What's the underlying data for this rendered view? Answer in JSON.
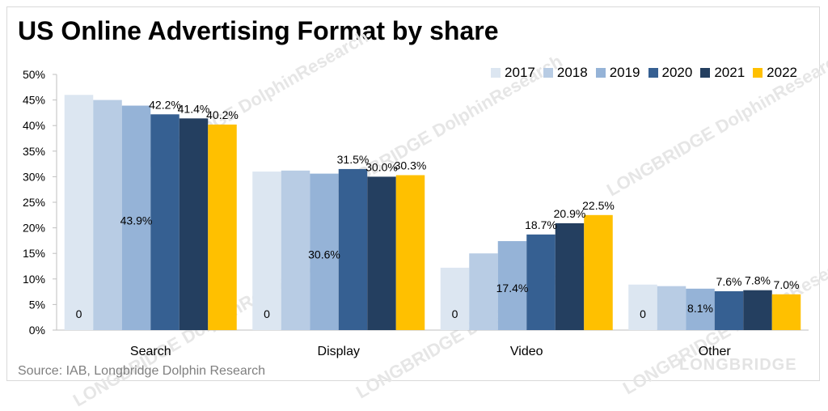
{
  "chart_data": {
    "type": "bar",
    "title": "US Online Advertising Format by share",
    "source": "Source: IAB, Longbridge Dolphin Research",
    "watermark_text": "LONGBRIDGE DolphinResearch",
    "watermark_brand": "LONGBRIDGE",
    "categories": [
      "Search",
      "Display",
      "Video",
      "Other"
    ],
    "ylim": [
      0,
      50
    ],
    "yticks": [
      "0%",
      "5%",
      "10%",
      "15%",
      "20%",
      "25%",
      "30%",
      "35%",
      "40%",
      "45%",
      "50%"
    ],
    "series": [
      {
        "name": "2017",
        "color": "#dce6f1",
        "values": [
          46.0,
          31.0,
          12.2,
          8.9
        ]
      },
      {
        "name": "2018",
        "color": "#b8cce4",
        "values": [
          45.0,
          31.2,
          15.0,
          8.6
        ]
      },
      {
        "name": "2019",
        "color": "#95b3d7",
        "values": [
          43.9,
          30.6,
          17.4,
          8.1
        ]
      },
      {
        "name": "2020",
        "color": "#366092",
        "values": [
          42.2,
          31.5,
          18.7,
          7.6
        ]
      },
      {
        "name": "2021",
        "color": "#243f60",
        "values": [
          41.4,
          30.0,
          20.9,
          7.8
        ]
      },
      {
        "name": "2022",
        "color": "#ffc000",
        "values": [
          40.2,
          30.3,
          22.5,
          7.0
        ]
      }
    ],
    "data_labels": [
      {
        "category": "Search",
        "text": "0"
      },
      {
        "category": "Search",
        "text": "43.9%"
      },
      {
        "category": "Search",
        "text": "42.2%"
      },
      {
        "category": "Search",
        "text": "41.4%"
      },
      {
        "category": "Search",
        "text": "40.2%"
      },
      {
        "category": "Display",
        "text": "0"
      },
      {
        "category": "Display",
        "text": "30.6%"
      },
      {
        "category": "Display",
        "text": "31.5%"
      },
      {
        "category": "Display",
        "text": "30.0%"
      },
      {
        "category": "Display",
        "text": "30.3%"
      },
      {
        "category": "Video",
        "text": "0"
      },
      {
        "category": "Video",
        "text": "17.4%"
      },
      {
        "category": "Video",
        "text": "18.7%"
      },
      {
        "category": "Video",
        "text": "20.9%"
      },
      {
        "category": "Video",
        "text": "22.5%"
      },
      {
        "category": "Other",
        "text": "0"
      },
      {
        "category": "Other",
        "text": "8.1%"
      },
      {
        "category": "Other",
        "text": "7.6%"
      },
      {
        "category": "Other",
        "text": "7.8%"
      },
      {
        "category": "Other",
        "text": "7.0%"
      }
    ],
    "legend_position": "top-right",
    "grid": false
  }
}
